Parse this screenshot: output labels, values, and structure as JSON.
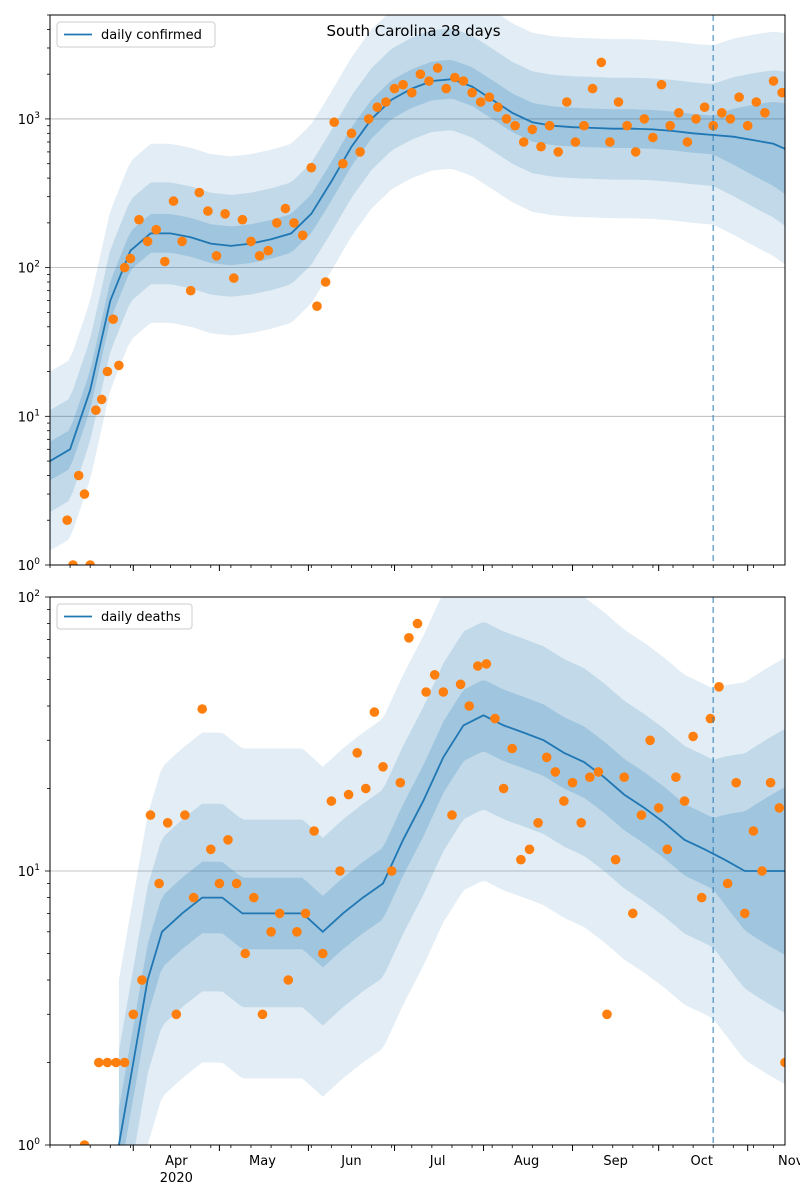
{
  "chart_data": [
    {
      "type": "line",
      "title": "South Carolina 28 days",
      "yscale": "log",
      "ylim": [
        1,
        5000
      ],
      "xlim": [
        "2020-03-03",
        "2020-11-14"
      ],
      "forecast_start": "2020-10-20",
      "grid": "y-major",
      "legend": {
        "position": "top-left",
        "label": "daily confirmed"
      },
      "x_tick_labels": [],
      "y_tick_labels": [
        "10^0",
        "10^1",
        "10^2",
        "10^3"
      ],
      "colors": {
        "line": "#1f77b4",
        "points": "#ff7f0e",
        "band": "#1f77b4",
        "vline": "#1f77b4"
      },
      "series": [
        {
          "name": "daily confirmed",
          "kind": "model_median",
          "x": [
            "2020-03-03",
            "2020-03-10",
            "2020-03-17",
            "2020-03-24",
            "2020-03-31",
            "2020-04-07",
            "2020-04-14",
            "2020-04-21",
            "2020-04-28",
            "2020-05-05",
            "2020-05-12",
            "2020-05-19",
            "2020-05-26",
            "2020-06-02",
            "2020-06-09",
            "2020-06-16",
            "2020-06-23",
            "2020-06-30",
            "2020-07-07",
            "2020-07-14",
            "2020-07-21",
            "2020-07-28",
            "2020-08-04",
            "2020-08-11",
            "2020-08-18",
            "2020-08-25",
            "2020-09-01",
            "2020-09-08",
            "2020-09-15",
            "2020-09-22",
            "2020-09-29",
            "2020-10-06",
            "2020-10-13",
            "2020-10-20",
            "2020-10-27",
            "2020-11-03",
            "2020-11-10",
            "2020-11-14"
          ],
          "y": [
            5,
            6,
            15,
            60,
            130,
            170,
            170,
            160,
            145,
            140,
            145,
            155,
            170,
            230,
            380,
            650,
            1000,
            1350,
            1600,
            1800,
            1850,
            1650,
            1350,
            1100,
            950,
            900,
            880,
            870,
            860,
            860,
            850,
            830,
            800,
            780,
            760,
            720,
            680,
            630
          ]
        },
        {
          "name": "observed",
          "kind": "points",
          "x": [
            "2020-03-09",
            "2020-03-11",
            "2020-03-13",
            "2020-03-15",
            "2020-03-17",
            "2020-03-19",
            "2020-03-21",
            "2020-03-23",
            "2020-03-25",
            "2020-03-27",
            "2020-03-29",
            "2020-03-31",
            "2020-04-03",
            "2020-04-06",
            "2020-04-09",
            "2020-04-12",
            "2020-04-15",
            "2020-04-18",
            "2020-04-21",
            "2020-04-24",
            "2020-04-27",
            "2020-04-30",
            "2020-05-03",
            "2020-05-06",
            "2020-05-09",
            "2020-05-12",
            "2020-05-15",
            "2020-05-18",
            "2020-05-21",
            "2020-05-24",
            "2020-05-27",
            "2020-05-30",
            "2020-06-02",
            "2020-06-04",
            "2020-06-07",
            "2020-06-10",
            "2020-06-13",
            "2020-06-16",
            "2020-06-19",
            "2020-06-22",
            "2020-06-25",
            "2020-06-28",
            "2020-07-01",
            "2020-07-04",
            "2020-07-07",
            "2020-07-10",
            "2020-07-13",
            "2020-07-16",
            "2020-07-19",
            "2020-07-22",
            "2020-07-25",
            "2020-07-28",
            "2020-07-31",
            "2020-08-03",
            "2020-08-06",
            "2020-08-09",
            "2020-08-12",
            "2020-08-15",
            "2020-08-18",
            "2020-08-21",
            "2020-08-24",
            "2020-08-27",
            "2020-08-30",
            "2020-09-02",
            "2020-09-05",
            "2020-09-08",
            "2020-09-11",
            "2020-09-14",
            "2020-09-17",
            "2020-09-20",
            "2020-09-23",
            "2020-09-26",
            "2020-09-29",
            "2020-10-02",
            "2020-10-05",
            "2020-10-08",
            "2020-10-11",
            "2020-10-14",
            "2020-10-17",
            "2020-10-20",
            "2020-10-23",
            "2020-10-26",
            "2020-10-29",
            "2020-11-01",
            "2020-11-04",
            "2020-11-07",
            "2020-11-10",
            "2020-11-13"
          ],
          "y": [
            2,
            1,
            4,
            3,
            1,
            11,
            13,
            20,
            45,
            22,
            100,
            115,
            210,
            150,
            180,
            110,
            280,
            150,
            70,
            320,
            240,
            120,
            230,
            85,
            210,
            150,
            120,
            130,
            200,
            250,
            200,
            165,
            470,
            55,
            80,
            950,
            500,
            800,
            600,
            1000,
            1200,
            1300,
            1600,
            1700,
            1500,
            2000,
            1800,
            2200,
            1600,
            1900,
            1800,
            1500,
            1300,
            1400,
            1200,
            1000,
            900,
            700,
            850,
            650,
            900,
            600,
            1300,
            700,
            900,
            1600,
            2400,
            700,
            1300,
            900,
            600,
            1000,
            750,
            1700,
            900,
            1100,
            700,
            1000,
            1200,
            900,
            1100,
            1000,
            1400,
            900,
            1300,
            1100,
            1800,
            1500
          ]
        }
      ]
    },
    {
      "type": "line",
      "title": "",
      "yscale": "log",
      "ylim": [
        1,
        100
      ],
      "xlim": [
        "2020-03-03",
        "2020-11-14"
      ],
      "forecast_start": "2020-10-20",
      "grid": "y-major",
      "legend": {
        "position": "top-left",
        "label": "daily deaths"
      },
      "x_tick_labels": [
        "Apr\n2020",
        "May",
        "Jun",
        "Jul",
        "Aug",
        "Sep",
        "Oct",
        "Nov"
      ],
      "y_tick_labels": [
        "10^0",
        "10^1",
        "10^2"
      ],
      "colors": {
        "line": "#1f77b4",
        "points": "#ff7f0e",
        "band": "#1f77b4",
        "vline": "#1f77b4"
      },
      "series": [
        {
          "name": "daily deaths",
          "kind": "model_median",
          "x": [
            "2020-03-27",
            "2020-04-01",
            "2020-04-06",
            "2020-04-11",
            "2020-04-18",
            "2020-04-25",
            "2020-05-02",
            "2020-05-09",
            "2020-05-16",
            "2020-05-23",
            "2020-05-30",
            "2020-06-06",
            "2020-06-13",
            "2020-06-20",
            "2020-06-27",
            "2020-07-04",
            "2020-07-11",
            "2020-07-18",
            "2020-07-25",
            "2020-08-01",
            "2020-08-08",
            "2020-08-15",
            "2020-08-22",
            "2020-08-29",
            "2020-09-05",
            "2020-09-12",
            "2020-09-19",
            "2020-09-26",
            "2020-10-03",
            "2020-10-10",
            "2020-10-17",
            "2020-10-24",
            "2020-10-31",
            "2020-11-07",
            "2020-11-14"
          ],
          "y": [
            1,
            2,
            4,
            6,
            7,
            8,
            8,
            7,
            7,
            7,
            7,
            6,
            7,
            8,
            9,
            13,
            18,
            26,
            34,
            37,
            34,
            32,
            30,
            27,
            25,
            22,
            19,
            17,
            15,
            13,
            12,
            11,
            10,
            10,
            10
          ]
        },
        {
          "name": "observed",
          "kind": "points",
          "x": [
            "2020-03-15",
            "2020-03-20",
            "2020-03-23",
            "2020-03-26",
            "2020-03-29",
            "2020-04-01",
            "2020-04-04",
            "2020-04-07",
            "2020-04-10",
            "2020-04-13",
            "2020-04-16",
            "2020-04-19",
            "2020-04-22",
            "2020-04-25",
            "2020-04-28",
            "2020-05-01",
            "2020-05-04",
            "2020-05-07",
            "2020-05-10",
            "2020-05-13",
            "2020-05-16",
            "2020-05-19",
            "2020-05-22",
            "2020-05-25",
            "2020-05-28",
            "2020-05-31",
            "2020-06-03",
            "2020-06-06",
            "2020-06-09",
            "2020-06-12",
            "2020-06-15",
            "2020-06-18",
            "2020-06-21",
            "2020-06-24",
            "2020-06-27",
            "2020-06-30",
            "2020-07-03",
            "2020-07-06",
            "2020-07-09",
            "2020-07-12",
            "2020-07-15",
            "2020-07-18",
            "2020-07-21",
            "2020-07-24",
            "2020-07-27",
            "2020-07-30",
            "2020-08-02",
            "2020-08-05",
            "2020-08-08",
            "2020-08-11",
            "2020-08-14",
            "2020-08-17",
            "2020-08-20",
            "2020-08-23",
            "2020-08-26",
            "2020-08-29",
            "2020-09-01",
            "2020-09-04",
            "2020-09-07",
            "2020-09-10",
            "2020-09-13",
            "2020-09-16",
            "2020-09-19",
            "2020-09-22",
            "2020-09-25",
            "2020-09-28",
            "2020-10-01",
            "2020-10-04",
            "2020-10-07",
            "2020-10-10",
            "2020-10-13",
            "2020-10-16",
            "2020-10-19",
            "2020-10-22",
            "2020-10-25",
            "2020-10-28",
            "2020-10-31",
            "2020-11-03",
            "2020-11-06",
            "2020-11-09",
            "2020-11-12",
            "2020-11-14"
          ],
          "y": [
            1,
            2,
            2,
            2,
            2,
            3,
            4,
            16,
            9,
            15,
            3,
            16,
            8,
            39,
            12,
            9,
            13,
            9,
            5,
            8,
            3,
            6,
            7,
            4,
            6,
            7,
            14,
            5,
            18,
            10,
            19,
            27,
            20,
            38,
            24,
            10,
            21,
            71,
            80,
            45,
            52,
            45,
            16,
            48,
            40,
            56,
            57,
            36,
            20,
            28,
            11,
            12,
            15,
            26,
            23,
            18,
            21,
            15,
            22,
            23,
            3,
            11,
            22,
            7,
            16,
            30,
            17,
            12,
            22,
            18,
            31,
            8,
            36,
            47,
            9,
            21,
            7,
            14,
            10,
            21,
            17,
            2
          ]
        }
      ]
    }
  ]
}
